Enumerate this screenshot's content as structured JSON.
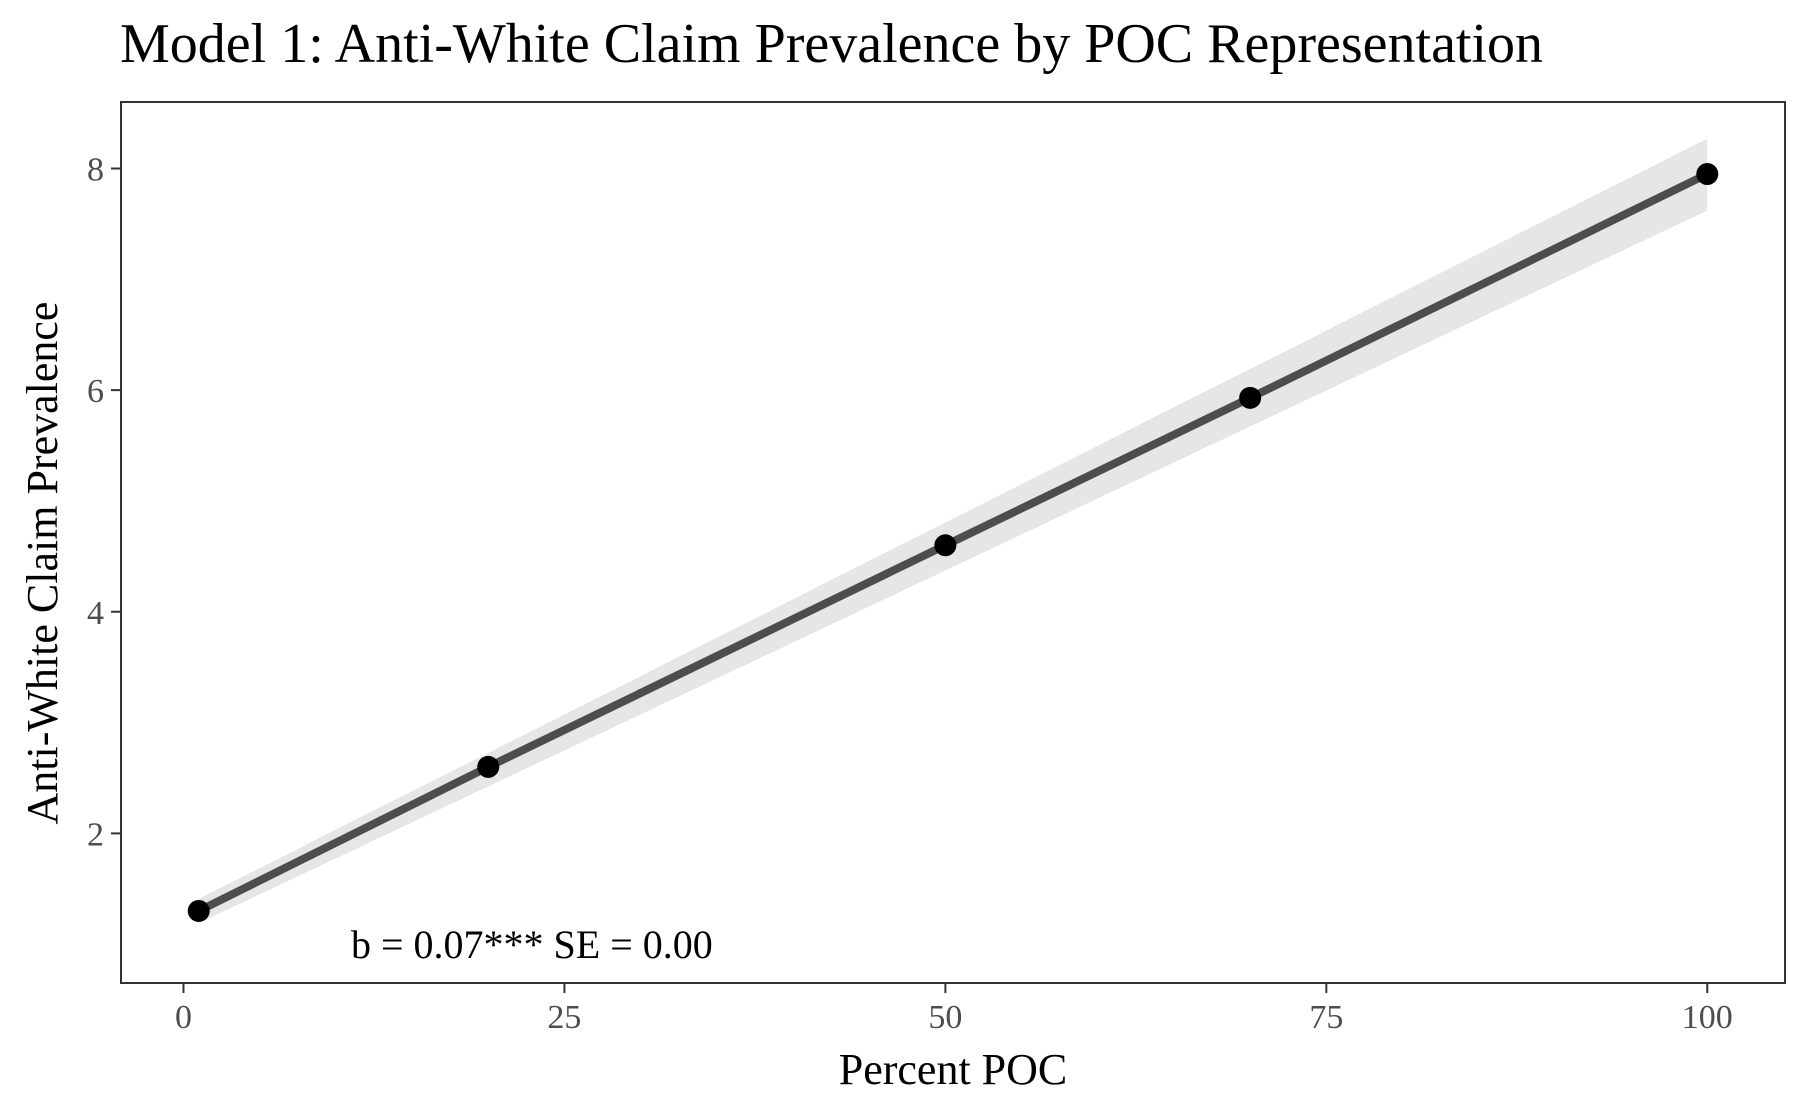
{
  "chart_data": {
    "type": "line",
    "title": "Model 1: Anti-White Claim Prevalence by POC Representation",
    "xlabel": "Percent POC",
    "ylabel": "Anti-White Claim Prevalence",
    "xlim": [
      -4.1,
      105.1
    ],
    "ylim": [
      0.65,
      8.6
    ],
    "x_ticks": [
      0,
      25,
      50,
      75,
      100
    ],
    "y_ticks": [
      2,
      4,
      6,
      8
    ],
    "grid": false,
    "legend": "none",
    "series": [
      {
        "x": [
          1,
          20,
          50,
          70,
          100
        ],
        "values": [
          1.3,
          2.6,
          4.6,
          5.93,
          7.95
        ]
      }
    ],
    "confidence_band": {
      "x": [
        1,
        100
      ],
      "lower": [
        1.19,
        7.62
      ],
      "upper": [
        1.41,
        8.27
      ]
    },
    "annotation": "b = 0.07*** SE = 0.00",
    "colors": {
      "line": "#4d4d4d",
      "band": "#e6e6e6",
      "point": "#000000",
      "border": "#333333",
      "tick_text": "#4d4d4d"
    }
  }
}
